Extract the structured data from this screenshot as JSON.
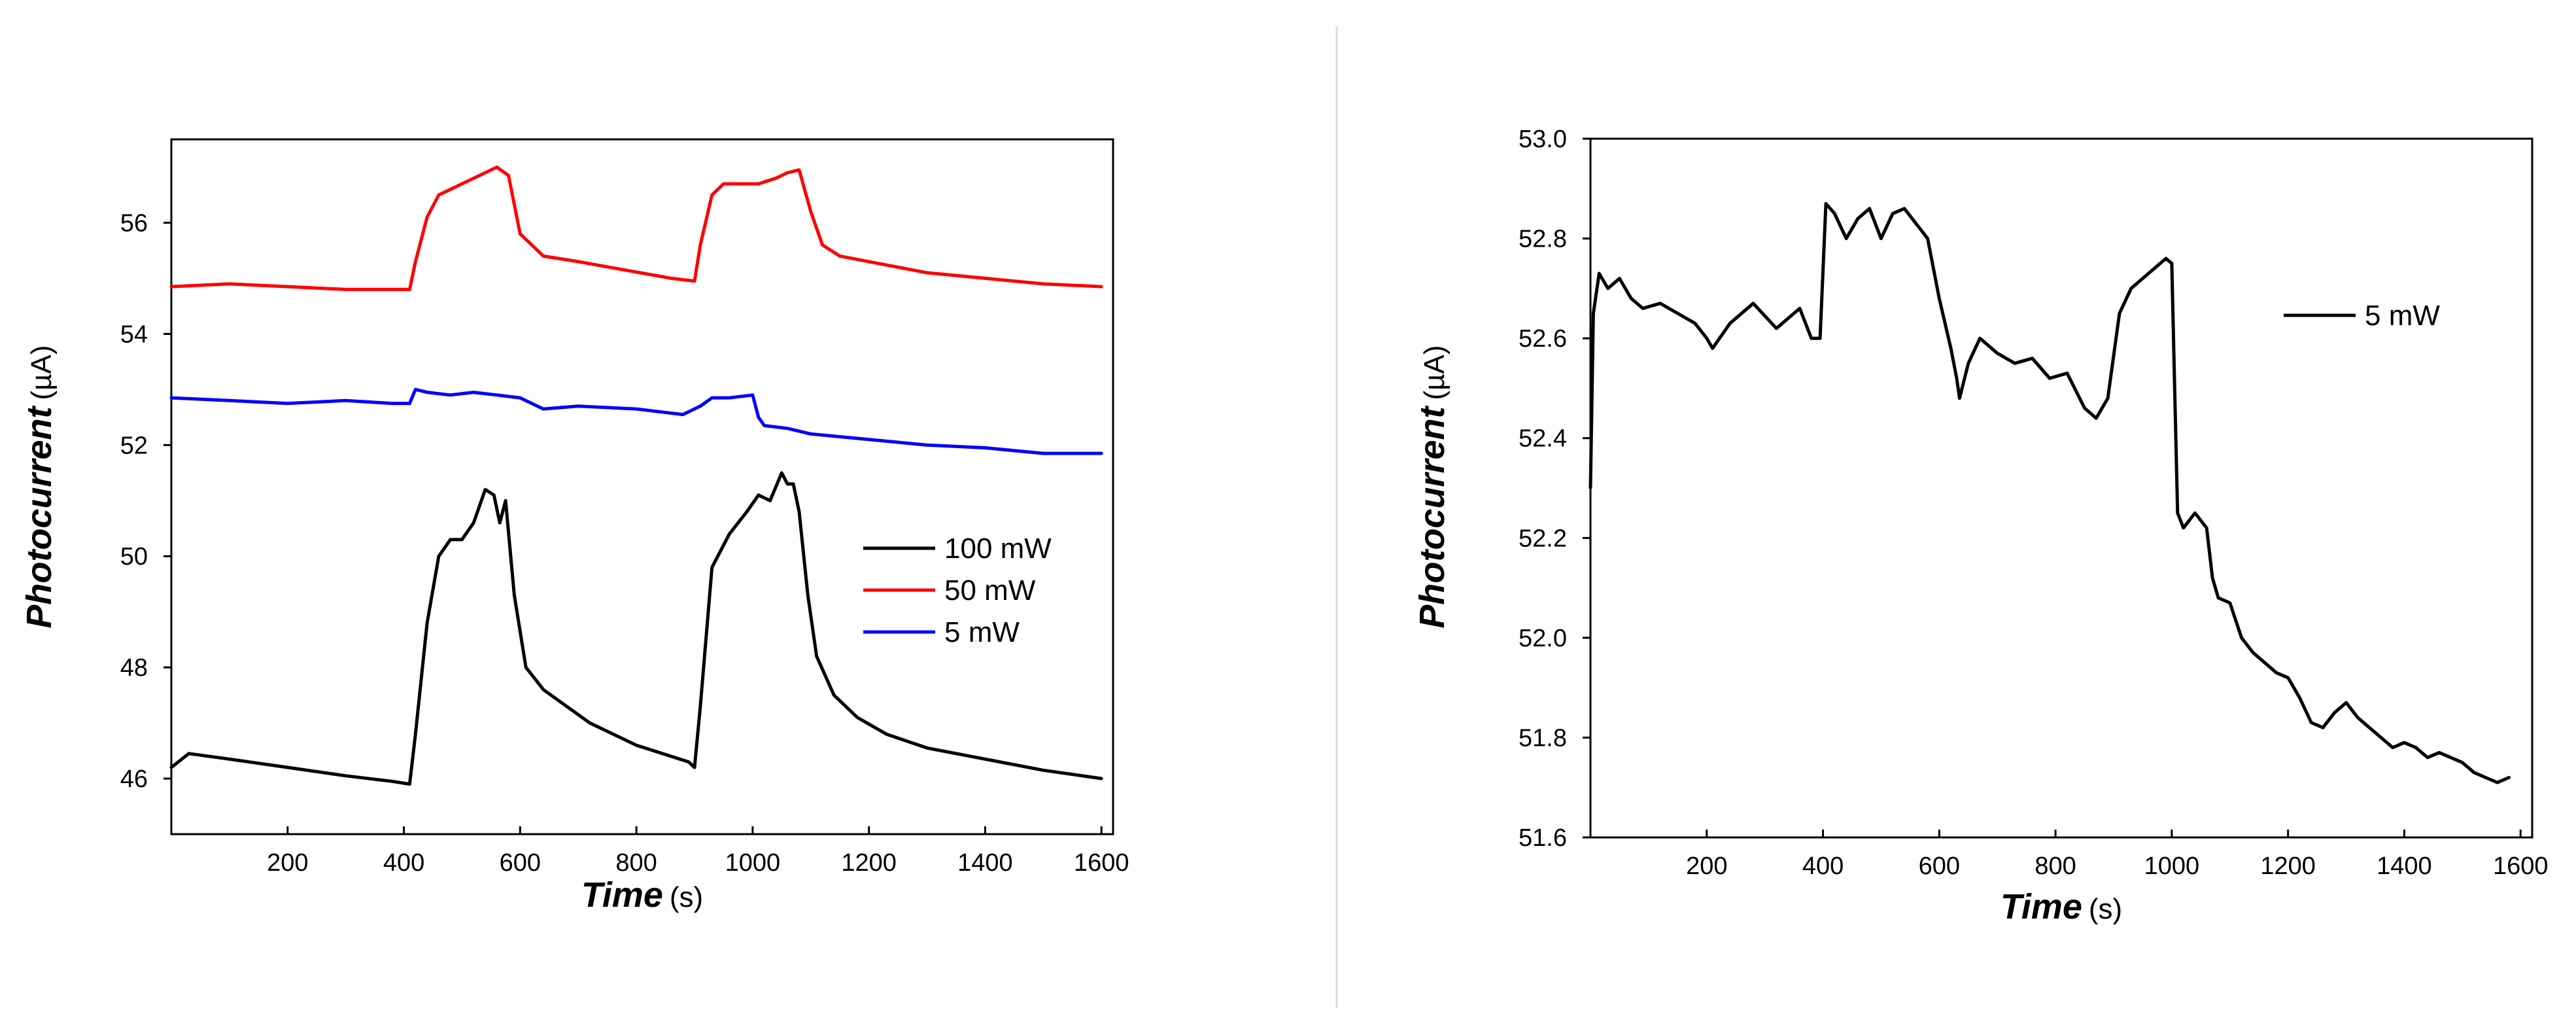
{
  "chart_data": [
    {
      "type": "line",
      "xlabel": "Time",
      "xlabel_unit": "(s)",
      "ylabel": "Photocurrent",
      "ylabel_unit": "(µA)",
      "xlim": [
        0,
        1620
      ],
      "ylim": [
        45,
        57.5
      ],
      "xticks": [
        200,
        400,
        600,
        800,
        1000,
        1200,
        1400,
        1600
      ],
      "yticks": [
        46,
        48,
        50,
        52,
        54,
        56
      ],
      "legend_position": "right",
      "series": [
        {
          "name": "100 mW",
          "color": "#000000",
          "x": [
            0,
            30,
            100,
            200,
            300,
            380,
            410,
            420,
            440,
            460,
            480,
            500,
            520,
            540,
            555,
            565,
            575,
            590,
            610,
            640,
            680,
            720,
            760,
            800,
            860,
            890,
            900,
            910,
            930,
            960,
            990,
            1010,
            1030,
            1050,
            1060,
            1070,
            1080,
            1095,
            1110,
            1140,
            1180,
            1230,
            1300,
            1400,
            1500,
            1600
          ],
          "y": [
            46.2,
            46.45,
            46.35,
            46.2,
            46.05,
            45.95,
            45.9,
            46.8,
            48.8,
            50.0,
            50.3,
            50.3,
            50.6,
            51.2,
            51.1,
            50.6,
            51.0,
            49.3,
            48.0,
            47.6,
            47.3,
            47.0,
            46.8,
            46.6,
            46.4,
            46.3,
            46.2,
            47.3,
            49.8,
            50.4,
            50.8,
            51.1,
            51.0,
            51.5,
            51.3,
            51.3,
            50.8,
            49.3,
            48.2,
            47.5,
            47.1,
            46.8,
            46.55,
            46.35,
            46.15,
            46.0
          ]
        },
        {
          "name": "50 mW",
          "color": "#ff0000",
          "x": [
            0,
            100,
            200,
            300,
            380,
            410,
            420,
            440,
            460,
            480,
            500,
            520,
            540,
            560,
            580,
            600,
            640,
            700,
            780,
            860,
            900,
            910,
            930,
            950,
            980,
            1010,
            1040,
            1060,
            1080,
            1100,
            1120,
            1150,
            1200,
            1300,
            1400,
            1500,
            1600
          ],
          "y": [
            54.85,
            54.9,
            54.85,
            54.8,
            54.8,
            54.8,
            55.3,
            56.1,
            56.5,
            56.6,
            56.7,
            56.8,
            56.9,
            57.0,
            56.85,
            55.8,
            55.4,
            55.3,
            55.15,
            55.0,
            54.95,
            55.6,
            56.5,
            56.7,
            56.7,
            56.7,
            56.8,
            56.9,
            56.95,
            56.2,
            55.6,
            55.4,
            55.3,
            55.1,
            55.0,
            54.9,
            54.85
          ]
        },
        {
          "name": "5 mW",
          "color": "#0000ff",
          "x": [
            0,
            100,
            200,
            300,
            380,
            410,
            420,
            440,
            480,
            520,
            560,
            600,
            640,
            700,
            800,
            880,
            910,
            930,
            960,
            1000,
            1010,
            1020,
            1060,
            1100,
            1200,
            1300,
            1400,
            1500,
            1600
          ],
          "y": [
            52.85,
            52.8,
            52.75,
            52.8,
            52.75,
            52.75,
            53.0,
            52.95,
            52.9,
            52.95,
            52.9,
            52.85,
            52.65,
            52.7,
            52.65,
            52.55,
            52.7,
            52.85,
            52.85,
            52.9,
            52.5,
            52.35,
            52.3,
            52.2,
            52.1,
            52.0,
            51.95,
            51.85,
            51.85
          ]
        }
      ]
    },
    {
      "type": "line",
      "xlabel": "Time",
      "xlabel_unit": "(s)",
      "ylabel": "Photocurrent",
      "ylabel_unit": "(µA)",
      "xlim": [
        0,
        1620
      ],
      "ylim": [
        51.6,
        53.0
      ],
      "xticks": [
        200,
        400,
        600,
        800,
        1000,
        1200,
        1400,
        1600
      ],
      "yticks": [
        51.6,
        51.8,
        52.0,
        52.2,
        52.4,
        52.6,
        52.8,
        53.0
      ],
      "ytick_labels": [
        "51.6",
        "51.8",
        "52.0",
        "52.2",
        "52.4",
        "52.6",
        "52.8",
        "53.0"
      ],
      "legend_position": "top-right",
      "series": [
        {
          "name": "5 mW",
          "color": "#000000",
          "x": [
            0,
            5,
            15,
            30,
            50,
            70,
            90,
            120,
            150,
            180,
            200,
            210,
            240,
            280,
            320,
            360,
            380,
            395,
            405,
            420,
            440,
            460,
            480,
            500,
            520,
            540,
            560,
            580,
            600,
            620,
            630,
            635,
            650,
            670,
            700,
            730,
            760,
            790,
            820,
            850,
            870,
            890,
            910,
            930,
            950,
            970,
            990,
            1000,
            1005,
            1010,
            1020,
            1040,
            1060,
            1070,
            1080,
            1100,
            1120,
            1140,
            1160,
            1180,
            1200,
            1220,
            1240,
            1260,
            1280,
            1300,
            1320,
            1340,
            1360,
            1380,
            1400,
            1420,
            1440,
            1460,
            1480,
            1500,
            1520,
            1540,
            1560,
            1580
          ],
          "y": [
            52.3,
            52.65,
            52.73,
            52.7,
            52.72,
            52.68,
            52.66,
            52.67,
            52.65,
            52.63,
            52.6,
            52.58,
            52.63,
            52.67,
            52.62,
            52.66,
            52.6,
            52.6,
            52.87,
            52.85,
            52.8,
            52.84,
            52.86,
            52.8,
            52.85,
            52.86,
            52.83,
            52.8,
            52.68,
            52.58,
            52.52,
            52.48,
            52.55,
            52.6,
            52.57,
            52.55,
            52.56,
            52.52,
            52.53,
            52.46,
            52.44,
            52.48,
            52.65,
            52.7,
            52.72,
            52.74,
            52.76,
            52.75,
            52.5,
            52.25,
            52.22,
            52.25,
            52.22,
            52.12,
            52.08,
            52.07,
            52.0,
            51.97,
            51.95,
            51.93,
            51.92,
            51.88,
            51.83,
            51.82,
            51.85,
            51.87,
            51.84,
            51.82,
            51.8,
            51.78,
            51.79,
            51.78,
            51.76,
            51.77,
            51.76,
            51.75,
            51.73,
            51.72,
            51.71,
            51.72
          ]
        }
      ]
    }
  ]
}
